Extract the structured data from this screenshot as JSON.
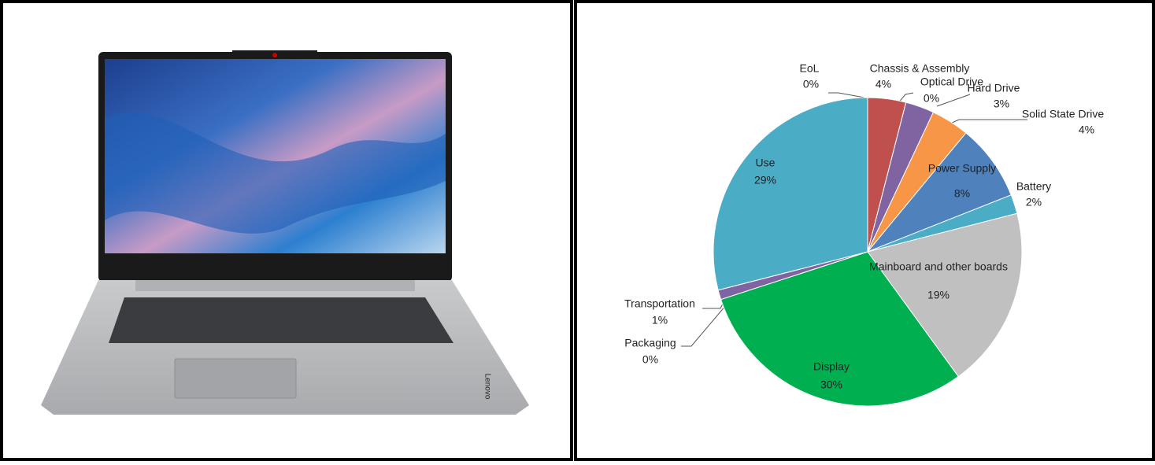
{
  "chart_data": {
    "type": "pie",
    "categories": [
      "EoL",
      "Chassis & Assembly",
      "Optical Drive",
      "Hard Drive",
      "Solid State Drive",
      "Power Supply",
      "Battery",
      "Mainboard and other boards",
      "Display",
      "Packaging",
      "Transportation",
      "Use"
    ],
    "values": [
      0,
      4,
      0,
      3,
      4,
      8,
      2,
      19,
      30,
      0,
      1,
      29
    ],
    "value_labels": [
      "0%",
      "4%",
      "0%",
      "3%",
      "4%",
      "8%",
      "2%",
      "19%",
      "30%",
      "0%",
      "1%",
      "29%"
    ],
    "colors": [
      "#f3a24a",
      "#c0504d",
      "#9bbb59",
      "#8064a2",
      "#f79646",
      "#4f81bd",
      "#4bacc6",
      "#c0c0c0",
      "#00b050",
      "#9bbb59",
      "#8064a2",
      "#4bacc6"
    ]
  },
  "photo": {
    "brand_label": "Lenovo"
  }
}
